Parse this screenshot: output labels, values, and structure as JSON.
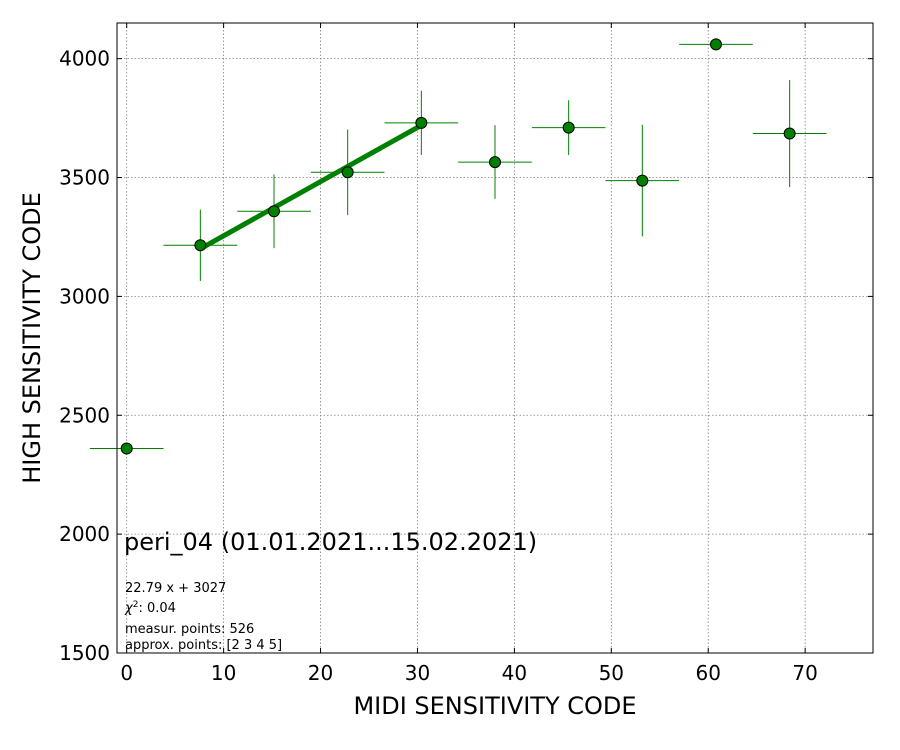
{
  "chart_data": {
    "type": "scatter",
    "xlabel": "MIDI SENSITIVITY CODE",
    "ylabel": "HIGH SENSITIVITY CODE",
    "xlim": [
      -1,
      77
    ],
    "ylim": [
      1500,
      4150
    ],
    "xticks": [
      0,
      10,
      20,
      30,
      40,
      50,
      60,
      70
    ],
    "yticks": [
      1500,
      2000,
      2500,
      3000,
      3500,
      4000
    ],
    "grid": true,
    "colors": {
      "marker": "#008000",
      "marker_edge": "#000000",
      "errorbar": "#008000",
      "fit": "#008000",
      "grid": "#808080"
    },
    "series": [
      {
        "points": [
          {
            "x": 0,
            "y": 2360,
            "xerr": 3.8,
            "yerr": 0
          },
          {
            "x": 7.6,
            "y": 3215,
            "xerr": 3.8,
            "yerr": 150
          },
          {
            "x": 15.2,
            "y": 3358,
            "xerr": 3.8,
            "yerr": 155
          },
          {
            "x": 22.8,
            "y": 3522,
            "xerr": 3.8,
            "yerr": 180
          },
          {
            "x": 30.4,
            "y": 3730,
            "xerr": 3.8,
            "yerr": 135
          },
          {
            "x": 38.0,
            "y": 3565,
            "xerr": 3.8,
            "yerr": 155
          },
          {
            "x": 45.6,
            "y": 3710,
            "xerr": 3.8,
            "yerr": 115
          },
          {
            "x": 53.2,
            "y": 3487,
            "xerr": 3.8,
            "yerr": 235
          },
          {
            "x": 60.8,
            "y": 4060,
            "xerr": 3.8,
            "yerr": 0
          },
          {
            "x": 68.4,
            "y": 3685,
            "xerr": 3.8,
            "yerr": 225
          }
        ]
      }
    ],
    "fit_line": {
      "slope": 22.79,
      "intercept": 3027,
      "x_range": [
        7.6,
        30.4
      ]
    },
    "annotations": {
      "title": "peri_04 (01.01.2021...15.02.2021)",
      "equation": "22.79 x + 3027",
      "chi2_value": ": 0.04",
      "measured": "measur. points: 526",
      "approx": "approx. points: [2 3 4 5]"
    }
  }
}
